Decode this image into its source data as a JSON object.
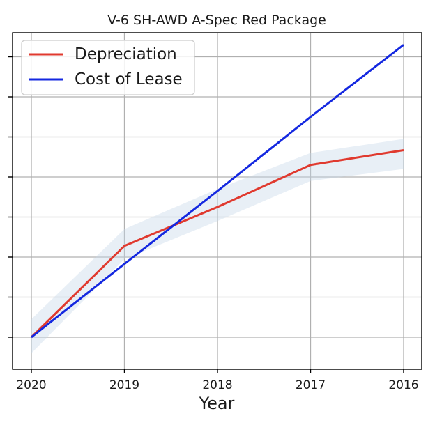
{
  "chart_data": {
    "type": "line",
    "title": "V-6 SH-AWD A-Spec Red Package",
    "xlabel": "Year",
    "ylabel": "",
    "categories": [
      "2020",
      "2019",
      "2018",
      "2017",
      "2016"
    ],
    "ylim": [
      -0.8,
      7.6
    ],
    "y_ticks": [
      0,
      1,
      2,
      3,
      4,
      5,
      6,
      7
    ],
    "y_tick_labels_shown": false,
    "grid": true,
    "legend_position": "top-left",
    "series": [
      {
        "name": "Depreciation",
        "color": "#e03a2f",
        "values": [
          0.0,
          2.28,
          3.25,
          4.3,
          4.67
        ],
        "band_lower": [
          -0.4,
          1.95,
          2.9,
          3.9,
          4.2
        ],
        "band_upper": [
          0.45,
          2.7,
          3.7,
          4.6,
          4.95
        ],
        "band_color": "#c5d6e8"
      },
      {
        "name": "Cost of Lease",
        "color": "#1428e0",
        "values": [
          0.0,
          1.83,
          3.65,
          5.5,
          7.3
        ]
      }
    ]
  }
}
